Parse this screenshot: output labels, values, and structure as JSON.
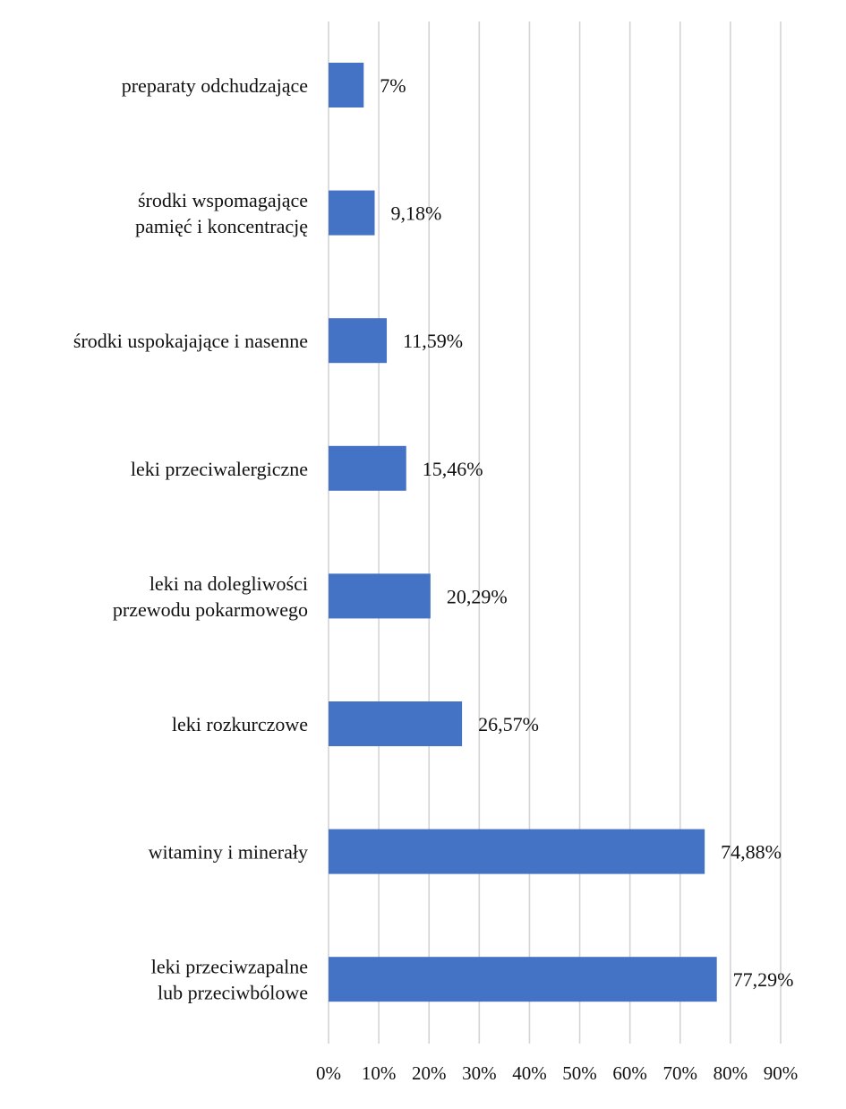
{
  "chart_data": {
    "type": "bar",
    "orientation": "horizontal",
    "title": "",
    "xlabel": "",
    "ylabel": "",
    "categories": [
      [
        "preparaty odchudzające"
      ],
      [
        "środki wspomagające",
        "pamięć i koncentrację"
      ],
      [
        "środki uspokajające i nasenne"
      ],
      [
        "leki przeciwalergiczne"
      ],
      [
        "leki na dolegliwości",
        "przewodu pokarmowego"
      ],
      [
        "leki rozkurczowe"
      ],
      [
        "witaminy i minerały"
      ],
      [
        "leki przeciwzapalne",
        "lub przeciwbólowe"
      ]
    ],
    "values": [
      7,
      9.18,
      11.59,
      15.46,
      20.29,
      26.57,
      74.88,
      77.29
    ],
    "value_labels": [
      "7%",
      "9,18%",
      "11,59%",
      "15,46%",
      "20,29%",
      "26,57%",
      "74,88%",
      "77,29%"
    ],
    "xlim": [
      0,
      90
    ],
    "xticks": [
      0,
      10,
      20,
      30,
      40,
      50,
      60,
      70,
      80,
      90
    ],
    "xtick_labels": [
      "0%",
      "10%",
      "20%",
      "30%",
      "40%",
      "50%",
      "60%",
      "70%",
      "80%",
      "90%"
    ],
    "grid": true,
    "bar_color": "#4472C4",
    "grid_color": "#D4D4D4",
    "text_color": "#111111"
  }
}
